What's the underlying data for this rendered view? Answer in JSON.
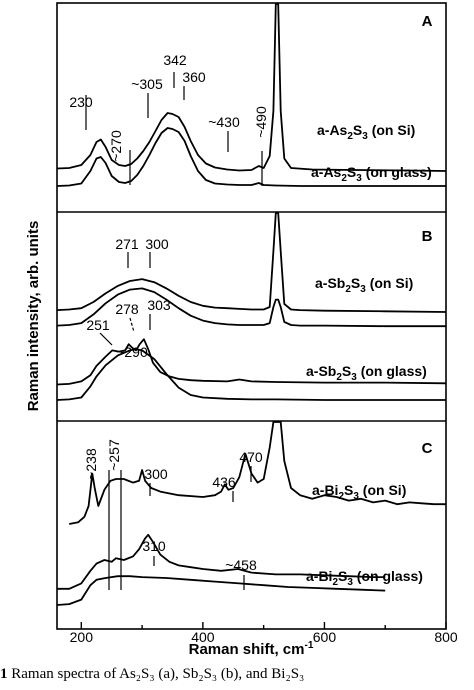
{
  "chart_data": {
    "type": "line",
    "xlabel": "Raman shift, cm",
    "xlabel_sup": "-1",
    "ylabel": "Raman intensity, arb. units",
    "xlim": [
      160,
      800
    ],
    "x_ticks": [
      200,
      400,
      600,
      800
    ],
    "x_tick_labels": [
      "200",
      "400",
      "600",
      "800"
    ],
    "panels": [
      {
        "letter": "A",
        "series": [
          {
            "label_main": "a-As",
            "label_sub1": "2",
            "label_mid": "S",
            "label_sub2": "3",
            "label_tail": " (on Si)",
            "x": [
              160,
              180,
              200,
              215,
              225,
              232,
              240,
              250,
              262,
              272,
              282,
              292,
              302,
              312,
              322,
              332,
              342,
              350,
              360,
              370,
              380,
              392,
              405,
              420,
              440,
              460,
              480,
              492,
              500,
              510,
              516,
              520,
              524,
              528,
              534,
              545,
              580,
              650,
              740,
              800
            ],
            "y": [
              0.35,
              0.36,
              0.42,
              0.62,
              0.88,
              0.93,
              0.78,
              0.52,
              0.42,
              0.4,
              0.44,
              0.55,
              0.7,
              0.88,
              1.1,
              1.32,
              1.46,
              1.44,
              1.38,
              1.18,
              0.9,
              0.62,
              0.45,
              0.37,
              0.33,
              0.31,
              0.32,
              0.4,
              0.36,
              0.6,
              1.5,
              4.0,
              4.0,
              1.5,
              0.55,
              0.36,
              0.33,
              0.32,
              0.31,
              0.3
            ]
          },
          {
            "label_main": "a-As",
            "label_sub1": "2",
            "label_mid": "S",
            "label_sub2": "3",
            "label_tail": " (on glass)",
            "x": [
              160,
              180,
              200,
              215,
              225,
              232,
              240,
              250,
              262,
              272,
              282,
              292,
              302,
              312,
              322,
              332,
              342,
              350,
              360,
              370,
              380,
              392,
              405,
              420,
              440,
              460,
              480,
              492,
              500,
              520,
              560,
              650,
              740,
              800
            ],
            "y": [
              0.0,
              0.01,
              0.05,
              0.3,
              0.55,
              0.58,
              0.46,
              0.2,
              0.08,
              0.06,
              0.1,
              0.22,
              0.4,
              0.62,
              0.86,
              1.06,
              1.16,
              1.14,
              1.08,
              0.9,
              0.6,
              0.3,
              0.12,
              0.05,
              0.03,
              0.02,
              0.02,
              0.06,
              0.02,
              0.01,
              0.0,
              0.0,
              0.0,
              0.0
            ]
          }
        ],
        "annotations": [
          "230",
          "~270",
          "~305",
          "342",
          "360",
          "~430",
          "~490"
        ]
      },
      {
        "letter": "B",
        "series": [
          {
            "label_main": "a-Sb",
            "label_sub1": "2",
            "label_mid": "S",
            "label_sub2": "3",
            "label_tail": " (on Si)",
            "x": [
              160,
              180,
              200,
              220,
              240,
              260,
              280,
              300,
              320,
              340,
              360,
              380,
              400,
              420,
              440,
              460,
              480,
              500,
              510,
              516,
              520,
              524,
              528,
              534,
              545,
              560,
              600,
              700,
              800
            ],
            "y": [
              1.45,
              1.46,
              1.48,
              1.58,
              1.72,
              1.84,
              1.92,
              1.95,
              1.9,
              1.8,
              1.68,
              1.58,
              1.52,
              1.49,
              1.48,
              1.47,
              1.46,
              1.46,
              1.5,
              2.4,
              3.55,
              3.55,
              2.4,
              1.55,
              1.46,
              1.45,
              1.44,
              1.43,
              1.42
            ]
          },
          {
            "label_main": "a-Sb",
            "label_sub1": "2",
            "label_mid": "S",
            "label_sub2": "3",
            "label_tail": " (on Si)",
            "x": [
              160,
              180,
              200,
              220,
              240,
              260,
              280,
              300,
              320,
              340,
              360,
              380,
              400,
              420,
              440,
              460,
              480,
              500,
              510,
              516,
              520,
              524,
              528,
              534,
              545,
              560,
              600,
              700,
              800
            ],
            "y": [
              1.2,
              1.21,
              1.24,
              1.38,
              1.56,
              1.7,
              1.78,
              1.8,
              1.74,
              1.62,
              1.48,
              1.36,
              1.28,
              1.24,
              1.22,
              1.21,
              1.21,
              1.21,
              1.24,
              1.5,
              1.62,
              1.62,
              1.5,
              1.26,
              1.21,
              1.2,
              1.2,
              1.19,
              1.19
            ]
          },
          {
            "label_main": "a-Sb",
            "label_sub1": "2",
            "label_mid": "S",
            "label_sub2": "3",
            "label_tail": " (on glass)",
            "x": [
              160,
              180,
              200,
              215,
              225,
              240,
              251,
              262,
              272,
              278,
              284,
              290,
              296,
              303,
              310,
              318,
              330,
              345,
              360,
              380,
              400,
              440,
              460,
              480,
              520,
              600,
              700,
              800
            ],
            "y": [
              0.25,
              0.26,
              0.3,
              0.4,
              0.55,
              0.7,
              0.8,
              0.78,
              0.8,
              0.9,
              0.84,
              0.8,
              0.9,
              0.98,
              0.82,
              0.6,
              0.45,
              0.38,
              0.34,
              0.32,
              0.31,
              0.3,
              0.33,
              0.3,
              0.29,
              0.28,
              0.28,
              0.27
            ]
          },
          {
            "label_main": "a-Sb",
            "label_sub1": "2",
            "label_mid": "S",
            "label_sub2": "3",
            "label_tail": " (on glass)",
            "x": [
              160,
              180,
              200,
              215,
              225,
              240,
              260,
              280,
              290,
              300,
              320,
              340,
              360,
              380,
              400,
              440,
              480,
              520,
              600,
              700,
              800
            ],
            "y": [
              0.0,
              0.01,
              0.04,
              0.22,
              0.38,
              0.56,
              0.72,
              0.8,
              0.82,
              0.8,
              0.66,
              0.42,
              0.2,
              0.08,
              0.04,
              0.02,
              0.01,
              0.01,
              0.0,
              0.0,
              0.0
            ]
          }
        ],
        "annotations": [
          "271",
          "300",
          "251",
          "278",
          "303",
          "~290"
        ]
      },
      {
        "letter": "C",
        "series": [
          {
            "label_main": "a-Bi",
            "label_sub1": "2",
            "label_mid": "S",
            "label_sub2": "3",
            "label_tail": " (on Si)",
            "x": [
              180,
              195,
              205,
              212,
              218,
              222,
              228,
              238,
              248,
              257,
              270,
              285,
              295,
              300,
              305,
              315,
              330,
              360,
              400,
              420,
              430,
              436,
              442,
              450,
              460,
              470,
              480,
              490,
              500,
              510,
              516,
              520,
              524,
              528,
              534,
              545,
              560,
              580,
              600,
              620,
              640,
              660,
              680,
              700,
              720,
              740,
              760,
              780,
              800
            ],
            "y": [
              0.9,
              0.92,
              0.98,
              1.1,
              1.46,
              1.3,
              1.1,
              1.28,
              1.38,
              1.4,
              1.4,
              1.36,
              1.38,
              1.5,
              1.38,
              1.3,
              1.26,
              1.22,
              1.2,
              1.22,
              1.26,
              1.34,
              1.28,
              1.3,
              1.42,
              1.68,
              1.46,
              1.36,
              1.4,
              1.75,
              2.6,
              3.3,
              3.3,
              2.6,
              1.6,
              1.3,
              1.22,
              1.18,
              1.22,
              1.2,
              1.16,
              1.18,
              1.14,
              1.16,
              1.12,
              1.14,
              1.13,
              1.12,
              1.12
            ]
          },
          {
            "label_main": "a-Bi",
            "label_sub1": "2",
            "label_mid": "S",
            "label_sub2": "3",
            "label_tail": " (on glass)",
            "x": [
              160,
              180,
              200,
              215,
              225,
              238,
              250,
              257,
              270,
              285,
              295,
              305,
              310,
              318,
              330,
              345,
              360,
              380,
              400,
              430,
              458,
              480,
              520,
              560,
              600,
              640,
              680,
              700
            ],
            "y": [
              0.18,
              0.18,
              0.24,
              0.38,
              0.46,
              0.5,
              0.48,
              0.52,
              0.5,
              0.54,
              0.62,
              0.74,
              0.78,
              0.7,
              0.56,
              0.48,
              0.44,
              0.42,
              0.4,
              0.38,
              0.4,
              0.36,
              0.34,
              0.34,
              0.33,
              0.32,
              0.31,
              0.31
            ]
          },
          {
            "label_main": "a-Bi",
            "label_sub1": "2",
            "label_mid": "S",
            "label_sub2": "3",
            "label_tail": " (on glass)",
            "x": [
              160,
              180,
              200,
              215,
              225,
              240,
              260,
              280,
              300,
              340,
              380,
              420,
              460,
              500,
              540,
              580,
              620,
              660,
              700
            ],
            "y": [
              0.0,
              0.01,
              0.06,
              0.22,
              0.28,
              0.3,
              0.32,
              0.32,
              0.31,
              0.3,
              0.28,
              0.26,
              0.24,
              0.22,
              0.2,
              0.19,
              0.18,
              0.17,
              0.16
            ]
          }
        ],
        "annotations": [
          "~238",
          "~257",
          "300",
          "436",
          "470",
          "310",
          "~458"
        ]
      }
    ]
  },
  "caption": {
    "bold": "1",
    "text": " Raman spectra of As₂S₃ (a), Sb₂S₃ (b), and Bi₂S₃"
  }
}
